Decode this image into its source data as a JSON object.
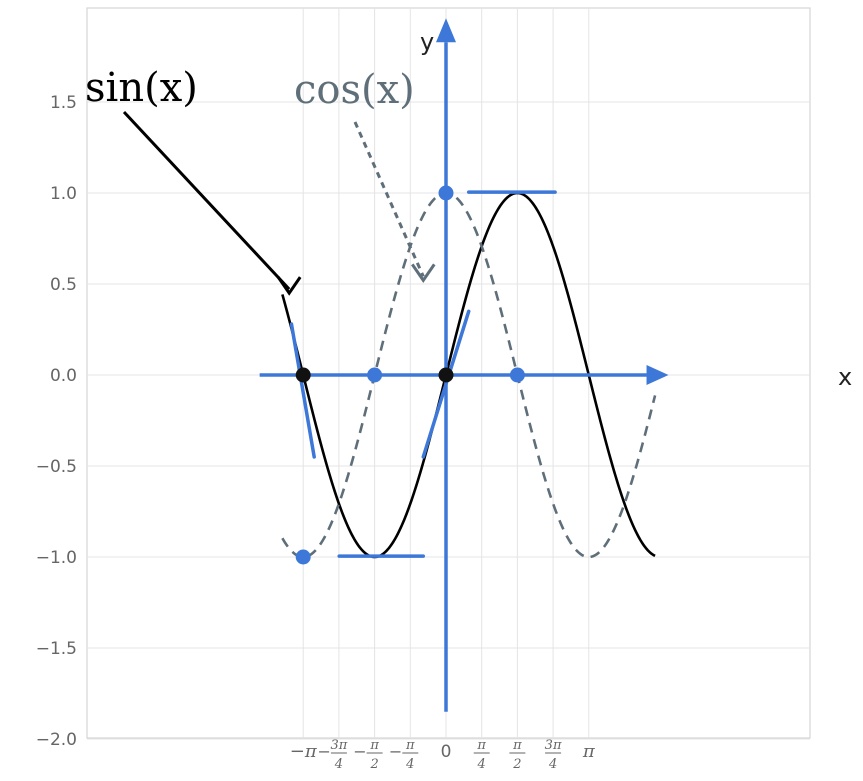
{
  "chart_data": {
    "type": "line",
    "title": "",
    "xlabel": "x",
    "ylabel": "y",
    "xlim": [
      -4.3,
      4.7
    ],
    "ylim": [
      -2.0,
      2.0
    ],
    "x_ticks": [
      {
        "value": -3.14159,
        "label": "−π"
      },
      {
        "value": -2.35619,
        "label": "−3π/4"
      },
      {
        "value": -1.5708,
        "label": "−π/2"
      },
      {
        "value": -0.7854,
        "label": "−π/4"
      },
      {
        "value": 0,
        "label": "0"
      },
      {
        "value": 0.7854,
        "label": "π/4"
      },
      {
        "value": 1.5708,
        "label": "π/2"
      },
      {
        "value": 2.35619,
        "label": "3π/4"
      },
      {
        "value": 3.14159,
        "label": "π"
      }
    ],
    "y_ticks": [
      {
        "value": 1.5,
        "label": "1.5"
      },
      {
        "value": 1.0,
        "label": "1.0"
      },
      {
        "value": 0.5,
        "label": "0.5"
      },
      {
        "value": 0.0,
        "label": "0.0"
      },
      {
        "value": -0.5,
        "label": "−0.5"
      },
      {
        "value": -1.0,
        "label": "−1.0"
      },
      {
        "value": -1.5,
        "label": "−1.5"
      },
      {
        "value": -2.0,
        "label": "−2.0"
      }
    ],
    "grid": true,
    "series": [
      {
        "name": "sin(x)",
        "function": "sin",
        "x_range": [
          -3.6,
          4.6
        ],
        "color": "#000000",
        "style": "solid"
      },
      {
        "name": "cos(x)",
        "function": "cos",
        "x_range": [
          -3.6,
          4.6
        ],
        "color": "#5f6f7a",
        "style": "dashed"
      }
    ],
    "annotations": [
      {
        "text": "sin(x)",
        "arrow_to": {
          "x": -3.45,
          "y": 0.45
        },
        "style": "solid",
        "color": "#000000"
      },
      {
        "text": "cos(x)",
        "arrow_to": {
          "x": -0.5,
          "y": 0.52
        },
        "style": "dashed",
        "color": "#5f6f7a"
      }
    ],
    "tangent_segments": [
      {
        "x1": -3.4,
        "y1": 0.28,
        "x2": -2.9,
        "y2": -0.45
      },
      {
        "x1": -2.35,
        "y1": -0.995,
        "x2": -0.5,
        "y2": -0.995
      },
      {
        "x1": -0.5,
        "y1": -0.45,
        "x2": 0.5,
        "y2": 0.35
      },
      {
        "x1": 0.5,
        "y1": 1.005,
        "x2": 2.4,
        "y2": 1.005
      }
    ],
    "marked_points": [
      {
        "x": -3.14159,
        "y": 0,
        "color": "#111111"
      },
      {
        "x": 0,
        "y": 0,
        "color": "#111111"
      },
      {
        "x": -1.5708,
        "y": 0,
        "color": "#3d78d8"
      },
      {
        "x": 1.5708,
        "y": 0,
        "color": "#3d78d8"
      },
      {
        "x": 0,
        "y": 1,
        "color": "#3d78d8"
      },
      {
        "x": -3.14159,
        "y": -1,
        "color": "#3d78d8"
      }
    ],
    "axes_arrows": {
      "color": "#3d78d8",
      "x_axis_range": [
        -4.1,
        4.5
      ],
      "y_axis_range": [
        -1.85,
        1.85
      ]
    }
  }
}
